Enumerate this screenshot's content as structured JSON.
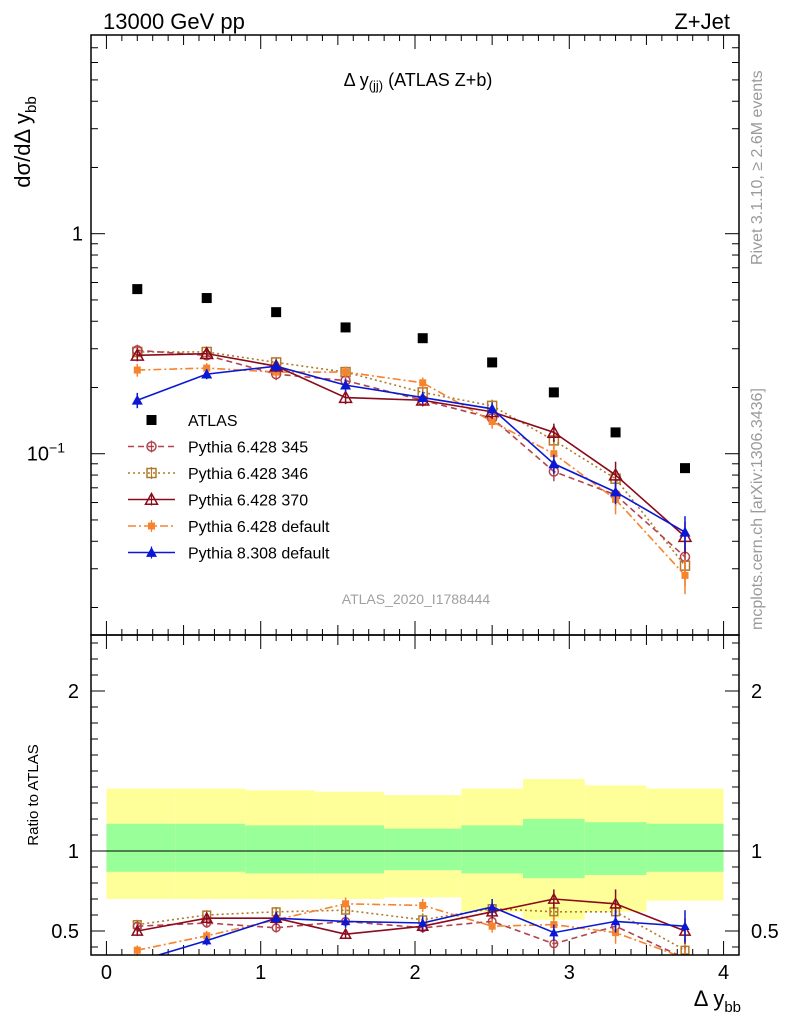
{
  "header": {
    "left": "13000 GeV pp",
    "right": "Z+Jet",
    "side_rivet": "Rivet 3.1.10, ≥ 2.6M events",
    "side_mcplots": "mcplots.cern.ch [arXiv:1306.3436]",
    "watermark": "ATLAS_2020_I1788444"
  },
  "main_title": {
    "base": "Δ y",
    "sub": "(jj)",
    "rest": " (ATLAS Z+b)"
  },
  "ylabel": {
    "base": "dσ/dΔ y",
    "sub": "bb"
  },
  "xlabel": {
    "base": "Δ y",
    "sub": "bb"
  },
  "ratio_ylabel": "Ratio to ATLAS",
  "colors": {
    "atlas": "#000000",
    "p345": "#b2434d",
    "p346": "#b07a2a",
    "p370": "#8b0a1c",
    "p6def": "#f6832e",
    "p8def": "#0b18d3",
    "band_inner": "#99ff99",
    "band_outer": "#ffff99"
  },
  "chart_data": [
    {
      "type": "scatter",
      "panel": "main",
      "ylog": true,
      "xlim": [
        -0.1,
        4.1
      ],
      "ylim": [
        0.015,
        8
      ],
      "x_ticks": [
        0,
        1,
        2,
        3,
        4
      ],
      "y_ticks": [
        {
          "value": 1,
          "label": "1"
        },
        {
          "value": 0.1,
          "label": "10",
          "sup": "−1"
        }
      ],
      "x": [
        0.2,
        0.65,
        1.1,
        1.55,
        2.05,
        2.5,
        2.9,
        3.3,
        3.75
      ],
      "series": [
        {
          "name": "ATLAS",
          "key": "atlas",
          "marker": "square",
          "line": "none",
          "values": [
            0.56,
            0.51,
            0.44,
            0.375,
            0.335,
            0.26,
            0.19,
            0.125,
            0.086
          ],
          "errors": [
            0,
            0,
            0,
            0,
            0,
            0,
            0,
            0,
            0
          ]
        },
        {
          "name": "Pythia 6.428 345",
          "key": "p345",
          "marker": "circle-open",
          "line": "dashed",
          "values": [
            0.295,
            0.28,
            0.23,
            0.215,
            0.175,
            0.145,
            0.083,
            0.065,
            0.034
          ],
          "errors": [
            0.018,
            0.014,
            0.014,
            0.013,
            0.01,
            0.01,
            0.008,
            0.007,
            0.006
          ]
        },
        {
          "name": "Pythia 6.428 346",
          "key": "p346",
          "marker": "square-open",
          "line": "dotted",
          "values": [
            0.29,
            0.29,
            0.26,
            0.235,
            0.19,
            0.165,
            0.115,
            0.077,
            0.031
          ],
          "errors": [
            0.018,
            0.014,
            0.015,
            0.014,
            0.011,
            0.011,
            0.01,
            0.008,
            0.006
          ]
        },
        {
          "name": "Pythia 6.428 370",
          "key": "p370",
          "marker": "triangle-open",
          "line": "solid",
          "values": [
            0.28,
            0.285,
            0.25,
            0.18,
            0.175,
            0.155,
            0.125,
            0.08,
            0.042
          ],
          "errors": [
            0.017,
            0.014,
            0.015,
            0.012,
            0.011,
            0.011,
            0.012,
            0.012,
            0.007
          ]
        },
        {
          "name": "Pythia 6.428 default",
          "key": "p6def",
          "marker": "square-small",
          "line": "dashdot",
          "values": [
            0.24,
            0.245,
            0.235,
            0.235,
            0.21,
            0.14,
            0.1,
            0.062,
            0.028
          ],
          "errors": [
            0.016,
            0.013,
            0.014,
            0.014,
            0.012,
            0.01,
            0.01,
            0.009,
            0.005
          ]
        },
        {
          "name": "Pythia 8.308 default",
          "key": "p8def",
          "marker": "triangle",
          "line": "solid",
          "values": [
            0.175,
            0.23,
            0.25,
            0.205,
            0.18,
            0.16,
            0.09,
            0.067,
            0.044
          ],
          "errors": [
            0.014,
            0.012,
            0.015,
            0.013,
            0.011,
            0.011,
            0.009,
            0.008,
            0.008
          ]
        }
      ]
    },
    {
      "type": "scatter",
      "panel": "ratio",
      "xlim": [
        -0.1,
        4.1
      ],
      "ylim": [
        0.35,
        2.35
      ],
      "y_ticks": [
        0.5,
        1,
        2
      ],
      "reference": 1,
      "bins": [
        0,
        0.45,
        0.9,
        1.35,
        1.8,
        2.3,
        2.7,
        3.1,
        3.5,
        4.0
      ],
      "band_inner": {
        "lo": [
          0.87,
          0.87,
          0.86,
          0.86,
          0.88,
          0.86,
          0.83,
          0.85,
          0.87
        ],
        "hi": [
          1.17,
          1.17,
          1.16,
          1.16,
          1.14,
          1.16,
          1.2,
          1.18,
          1.17
        ]
      },
      "band_outer": {
        "lo": [
          0.7,
          0.7,
          0.7,
          0.7,
          0.71,
          0.62,
          0.57,
          0.62,
          0.69
        ],
        "hi": [
          1.39,
          1.39,
          1.38,
          1.37,
          1.35,
          1.39,
          1.45,
          1.41,
          1.39
        ]
      },
      "x": [
        0.2,
        0.65,
        1.1,
        1.55,
        2.05,
        2.5,
        2.9,
        3.3,
        3.75
      ],
      "series": [
        {
          "name": "Pythia 6.428 345",
          "key": "p345",
          "values": [
            0.53,
            0.55,
            0.52,
            0.56,
            0.52,
            0.56,
            0.42,
            0.53,
            0.33
          ],
          "errors": [
            0.03,
            0.03,
            0.03,
            0.03,
            0.03,
            0.04,
            0.04,
            0.06,
            0.07
          ]
        },
        {
          "name": "Pythia 6.428 346",
          "key": "p346",
          "values": [
            0.54,
            0.6,
            0.62,
            0.63,
            0.57,
            0.64,
            0.62,
            0.62,
            0.38
          ],
          "errors": [
            0.03,
            0.03,
            0.03,
            0.04,
            0.04,
            0.04,
            0.05,
            0.06,
            0.07
          ]
        },
        {
          "name": "Pythia 6.428 370",
          "key": "p370",
          "values": [
            0.5,
            0.58,
            0.58,
            0.48,
            0.53,
            0.62,
            0.7,
            0.67,
            0.5
          ],
          "errors": [
            0.03,
            0.03,
            0.04,
            0.03,
            0.04,
            0.04,
            0.06,
            0.09,
            0.08
          ]
        },
        {
          "name": "Pythia 6.428 default",
          "key": "p6def",
          "values": [
            0.38,
            0.47,
            0.57,
            0.67,
            0.66,
            0.53,
            0.54,
            0.49,
            0.33
          ],
          "errors": [
            0.03,
            0.03,
            0.03,
            0.04,
            0.04,
            0.04,
            0.05,
            0.07,
            0.06
          ]
        },
        {
          "name": "Pythia 8.308 default",
          "key": "p8def",
          "values": [
            0.31,
            0.44,
            0.58,
            0.56,
            0.55,
            0.65,
            0.49,
            0.56,
            0.53
          ],
          "errors": [
            0.03,
            0.03,
            0.04,
            0.04,
            0.04,
            0.05,
            0.05,
            0.07,
            0.1
          ]
        }
      ]
    }
  ]
}
